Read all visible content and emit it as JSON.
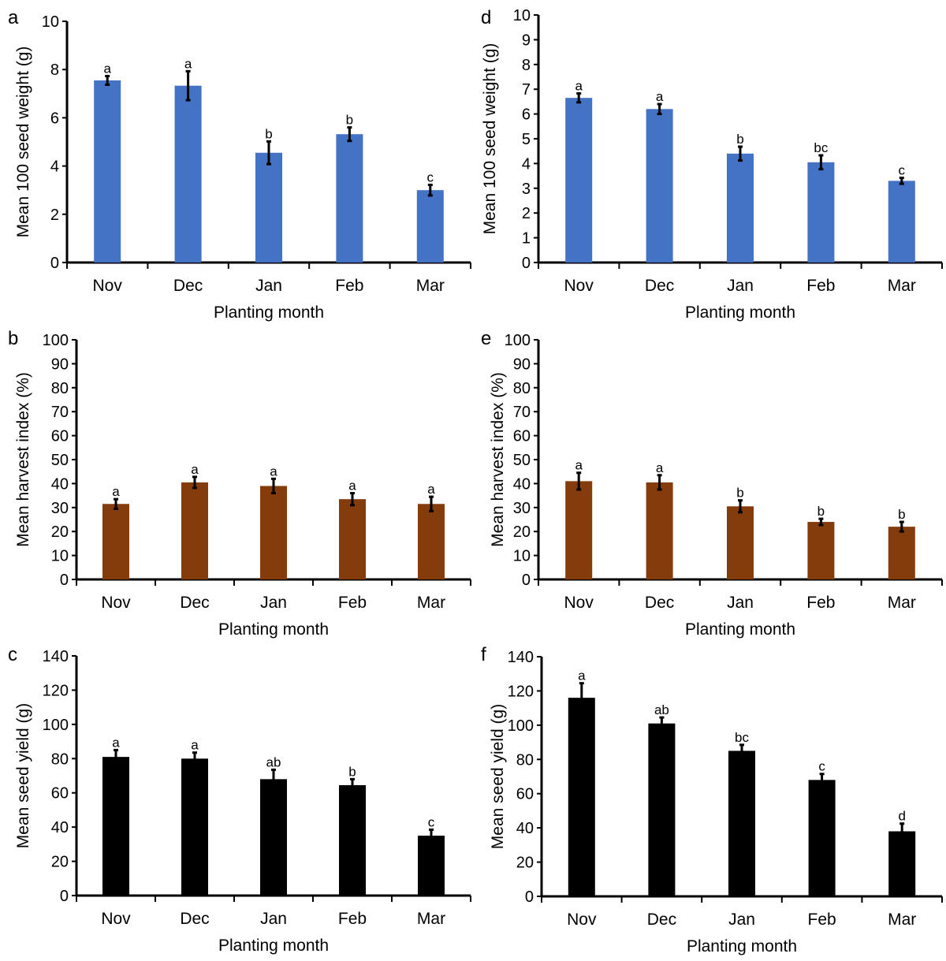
{
  "chart_data": [
    {
      "panel": "a",
      "type": "bar",
      "categories": [
        "Nov",
        "Dec",
        "Jan",
        "Feb",
        "Mar"
      ],
      "values": [
        7.55,
        7.33,
        4.55,
        5.32,
        3.0
      ],
      "errors": [
        0.18,
        0.6,
        0.47,
        0.28,
        0.22
      ],
      "significance": [
        "a",
        "a",
        "b",
        "b",
        "c"
      ],
      "xlabel": "Planting month",
      "ylabel": "Mean 100 seed weight (g)",
      "ylim": [
        0,
        10
      ],
      "yticks": [
        0,
        2,
        4,
        6,
        8,
        10
      ],
      "color": "#4472C4"
    },
    {
      "panel": "b",
      "type": "bar",
      "categories": [
        "Nov",
        "Dec",
        "Jan",
        "Feb",
        "Mar"
      ],
      "values": [
        31.5,
        40.5,
        39,
        33.5,
        31.5
      ],
      "errors": [
        2,
        2.3,
        3,
        2.5,
        3
      ],
      "significance": [
        "a",
        "a",
        "a",
        "a",
        "a"
      ],
      "xlabel": "Planting month",
      "ylabel": "Mean harvest index (%)",
      "ylim": [
        0,
        100
      ],
      "yticks": [
        0,
        10,
        20,
        30,
        40,
        50,
        60,
        70,
        80,
        90,
        100
      ],
      "color": "#843C0C"
    },
    {
      "panel": "c",
      "type": "bar",
      "categories": [
        "Nov",
        "Dec",
        "Jan",
        "Feb",
        "Mar"
      ],
      "values": [
        81,
        80,
        68,
        64.5,
        35
      ],
      "errors": [
        4,
        3.5,
        5.5,
        3.5,
        3.5
      ],
      "significance": [
        "a",
        "a",
        "ab",
        "b",
        "c"
      ],
      "xlabel": "Planting month",
      "ylabel": "Mean seed yield (g)",
      "ylim": [
        0,
        140
      ],
      "yticks": [
        0,
        20,
        40,
        60,
        80,
        100,
        120,
        140
      ],
      "color": "#000000"
    },
    {
      "panel": "d",
      "type": "bar",
      "categories": [
        "Nov",
        "Dec",
        "Jan",
        "Feb",
        "Mar"
      ],
      "values": [
        6.65,
        6.2,
        4.4,
        4.05,
        3.3
      ],
      "errors": [
        0.18,
        0.2,
        0.28,
        0.28,
        0.12
      ],
      "significance": [
        "a",
        "a",
        "b",
        "bc",
        "c"
      ],
      "xlabel": "Planting month",
      "ylabel": "Mean 100 seed weight (g)",
      "ylim": [
        0,
        10
      ],
      "yticks": [
        0,
        1,
        2,
        3,
        4,
        5,
        6,
        7,
        8,
        9,
        10
      ],
      "color": "#4472C4"
    },
    {
      "panel": "e",
      "type": "bar",
      "categories": [
        "Nov",
        "Dec",
        "Jan",
        "Feb",
        "Mar"
      ],
      "values": [
        41,
        40.5,
        30.5,
        24,
        22
      ],
      "errors": [
        3.5,
        3,
        2.5,
        1.3,
        2
      ],
      "significance": [
        "a",
        "a",
        "b",
        "b",
        "b"
      ],
      "xlabel": "Planting month",
      "ylabel": "Mean harvest index (%)",
      "ylim": [
        0,
        100
      ],
      "yticks": [
        0,
        10,
        20,
        30,
        40,
        50,
        60,
        70,
        80,
        90,
        100
      ],
      "color": "#843C0C"
    },
    {
      "panel": "f",
      "type": "bar",
      "categories": [
        "Nov",
        "Dec",
        "Jan",
        "Feb",
        "Mar"
      ],
      "values": [
        116,
        101,
        85,
        68,
        38
      ],
      "errors": [
        8.5,
        3.5,
        3.5,
        3.5,
        4.5
      ],
      "significance": [
        "a",
        "ab",
        "bc",
        "c",
        "d"
      ],
      "xlabel": "Planting month",
      "ylabel": "Mean seed yield (g)",
      "ylim": [
        0,
        140
      ],
      "yticks": [
        0,
        20,
        40,
        60,
        80,
        100,
        120,
        140
      ],
      "color": "#000000"
    }
  ]
}
